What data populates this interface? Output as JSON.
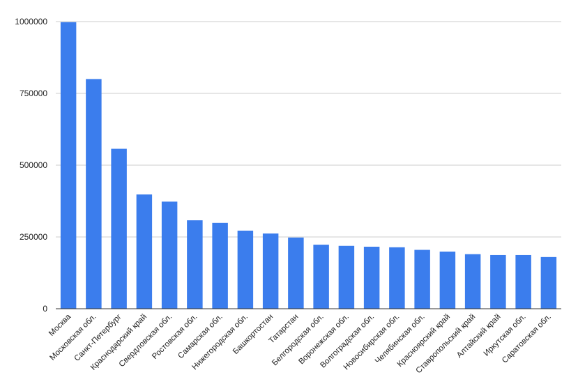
{
  "chart_data": {
    "type": "bar",
    "title": "",
    "xlabel": "",
    "ylabel": "",
    "ylim": [
      0,
      1000000
    ],
    "yticks": [
      0,
      250000,
      500000,
      750000,
      1000000
    ],
    "ytick_labels": [
      "0",
      "250000",
      "500000",
      "750000",
      "1000000"
    ],
    "grid": true,
    "legend": "none",
    "bar_color": "#3B7DED",
    "categories": [
      "Москва",
      "Московская обл.",
      "Санкт-Петербург",
      "Краснодарский край",
      "Свердловская обл.",
      "Ростовская обл.",
      "Самарская обл.",
      "Нижегородская обл.",
      "Башкортостан",
      "Татарстан",
      "Белгородская обл.",
      "Воронежская обл.",
      "Волгоградская обл.",
      "Новосибирская обл.",
      "Челябинская обл.",
      "Красноярский край",
      "Ставропольский край",
      "Алтайский край",
      "Иркутская обл.",
      "Саратовская обл."
    ],
    "values": [
      998000,
      800000,
      557000,
      398000,
      373000,
      308000,
      299000,
      272000,
      262000,
      248000,
      223000,
      219000,
      216000,
      214000,
      205000,
      199000,
      190000,
      187000,
      187000,
      180000
    ]
  }
}
